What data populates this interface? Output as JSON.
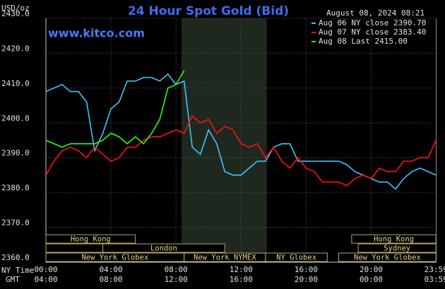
{
  "chart_data": {
    "type": "line",
    "title": "24 Hour Spot Gold (Bid)",
    "site": "www.kitco.com",
    "date": "August 08, 2024 08:21",
    "y_label": "USD/oz",
    "x_label": "NY Time",
    "x2_label": "GMT",
    "x": [
      0,
      0.5,
      1,
      1.5,
      2,
      2.5,
      3,
      3.5,
      4,
      4.5,
      5,
      5.5,
      6,
      6.5,
      7,
      7.5,
      8,
      8.5,
      9,
      9.5,
      10,
      10.5,
      11,
      11.5,
      12,
      12.5,
      13,
      13.5,
      14,
      14.5,
      15,
      15.5,
      16,
      16.5,
      17,
      17.5,
      18,
      18.5,
      19,
      19.5,
      20,
      20.5,
      21,
      21.5,
      22,
      22.5,
      23,
      23.5,
      23.983
    ],
    "series": [
      {
        "name": "Aug 06 NY close 2390.70",
        "color": "#40c4ff",
        "values": [
          2409,
          2410,
          2411,
          2409,
          2409,
          2406,
          2392,
          2397,
          2404,
          2406,
          2412,
          2412,
          2413,
          2413,
          2412,
          2414,
          2411,
          2412,
          2393,
          2391,
          2398,
          2394,
          2386,
          2385,
          2385,
          2387,
          2389,
          2389,
          2393,
          2394,
          2394,
          2389,
          2389,
          2389,
          2389,
          2389,
          2389,
          2388,
          2386,
          2385,
          2384,
          2383,
          2383,
          2381,
          2384,
          2386,
          2387,
          2386,
          2385
        ]
      },
      {
        "name": "Aug 07 NY close 2383.40",
        "color": "#ff1010",
        "values": [
          2385,
          2389,
          2392,
          2393,
          2392,
          2390,
          2393,
          2391,
          2389,
          2390,
          2393,
          2393,
          2395,
          2396,
          2396,
          2397,
          2398,
          2397,
          2402,
          2400,
          2401,
          2397,
          2399,
          2398,
          2394,
          2393,
          2394,
          2390,
          2393,
          2389,
          2387,
          2390,
          2387,
          2386,
          2383,
          2383,
          2383,
          2382,
          2384,
          2385,
          2384,
          2387,
          2386,
          2386,
          2389,
          2389,
          2390,
          2390,
          2395
        ]
      },
      {
        "name": "Aug 08 Last 2415.00",
        "color": "#20ff20",
        "values": [
          2395,
          2394,
          2393,
          2394,
          2394,
          2394,
          2394,
          2395,
          2397,
          2396,
          2394,
          2396,
          2394,
          2397,
          2401,
          2410,
          2411,
          2415,
          null,
          null,
          null,
          null,
          null,
          null,
          null,
          null,
          null,
          null,
          null,
          null,
          null,
          null,
          null,
          null,
          null,
          null,
          null,
          null,
          null,
          null,
          null,
          null,
          null,
          null,
          null,
          null,
          null,
          null,
          null
        ]
      }
    ],
    "ylim": [
      2360,
      2430
    ],
    "yticks": [
      {
        "value": 2360,
        "label": "2360.0"
      },
      {
        "value": 2370,
        "label": "2370.0"
      },
      {
        "value": 2380,
        "label": "2380.0"
      },
      {
        "value": 2390,
        "label": "2390.0"
      },
      {
        "value": 2400,
        "label": "2400.0"
      },
      {
        "value": 2410,
        "label": "2410.0"
      },
      {
        "value": 2420,
        "label": "2420.0"
      },
      {
        "value": 2430,
        "label": "2430.0"
      }
    ],
    "xlim": [
      0,
      24
    ],
    "xticks": [
      {
        "value": 0,
        "label": "00:00"
      },
      {
        "value": 4,
        "label": "04:00"
      },
      {
        "value": 8,
        "label": "08:00"
      },
      {
        "value": 12,
        "label": "12:00"
      },
      {
        "value": 16,
        "label": "16:00"
      },
      {
        "value": 20,
        "label": "20:00"
      },
      {
        "value": 23.983,
        "label": "23:59"
      }
    ],
    "x2ticklabels": [
      "04:00",
      "08:00",
      "12:00",
      "16:00",
      "20:00",
      "00:00",
      "03:59"
    ],
    "sessions": [
      "Hong Kong",
      "London",
      "New York Globex",
      "New York NYMEX",
      "NY Globex",
      "Hong Kong",
      "Sydney",
      "New York Globex"
    ],
    "grid": true
  }
}
